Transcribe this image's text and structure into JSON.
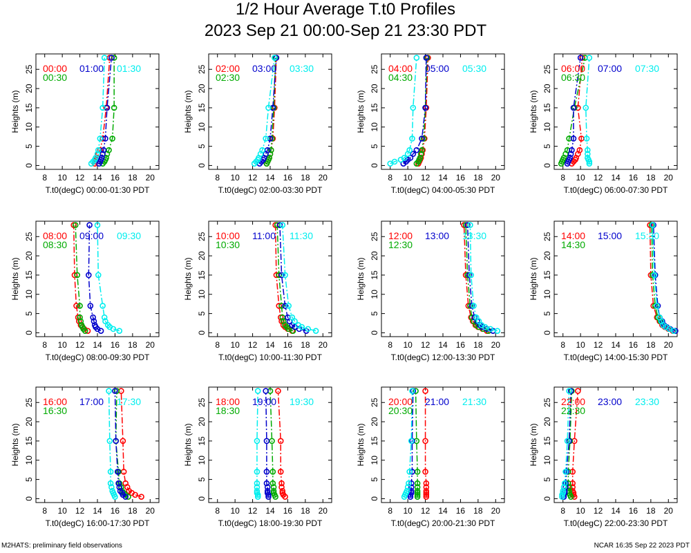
{
  "page": {
    "title": "1/2 Hour Average T.t0 Profiles",
    "subtitle": "2023 Sep 21 00:00-Sep 21 23:30 PDT",
    "footer_left": "M2HATS: preliminary field observations",
    "footer_right": "NCAR 16:35 Sep 22 2023 PDT"
  },
  "colors": {
    "series1": "#ff0000",
    "series2": "#00aa00",
    "series3": "#0000cc",
    "series4": "#00eeee",
    "axis": "#000000"
  },
  "chart_data": [
    {
      "type": "line",
      "xlabel": "T.t0(degC) 00:00-01:30 PDT",
      "ylabel": "Heights (m)",
      "xlim": [
        7,
        21
      ],
      "ylim": [
        -1,
        29
      ],
      "xticks": [
        8,
        10,
        12,
        14,
        16,
        18,
        20
      ],
      "yticks": [
        0,
        5,
        10,
        15,
        20,
        25
      ],
      "grid": false,
      "heights": [
        0.5,
        1,
        1.5,
        2,
        3,
        4,
        7,
        15,
        28
      ],
      "series": [
        {
          "name": "00:00",
          "values": [
            13.7,
            13.8,
            13.9,
            14.0,
            14.1,
            14.3,
            14.6,
            15.0,
            15.4
          ]
        },
        {
          "name": "00:30",
          "values": [
            14.6,
            14.8,
            14.9,
            15.0,
            15.1,
            15.3,
            15.7,
            15.9,
            15.9
          ]
        },
        {
          "name": "01:00",
          "values": [
            14.2,
            14.3,
            14.4,
            14.5,
            14.6,
            14.7,
            14.9,
            15.1,
            15.6
          ]
        },
        {
          "name": "01:30",
          "values": [
            13.3,
            13.5,
            13.7,
            13.8,
            14.0,
            14.1,
            14.3,
            14.6,
            14.8
          ]
        }
      ]
    },
    {
      "type": "line",
      "xlabel": "T.t0(degC) 02:00-03:30 PDT",
      "ylabel": "Heights (m)",
      "xlim": [
        7,
        21
      ],
      "ylim": [
        -1,
        29
      ],
      "xticks": [
        8,
        10,
        12,
        14,
        16,
        18,
        20
      ],
      "yticks": [
        0,
        5,
        10,
        15,
        20,
        25
      ],
      "grid": false,
      "heights": [
        0.5,
        1,
        1.5,
        2,
        3,
        4,
        7,
        15,
        28
      ],
      "series": [
        {
          "name": "02:00",
          "values": [
            13.6,
            13.7,
            13.8,
            13.9,
            14.0,
            14.1,
            14.3,
            14.5,
            14.7
          ]
        },
        {
          "name": "02:30",
          "values": [
            13.6,
            13.7,
            13.8,
            13.9,
            14.0,
            14.1,
            14.2,
            14.4,
            14.6
          ]
        },
        {
          "name": "03:00",
          "values": [
            12.8,
            13.0,
            13.2,
            13.3,
            13.5,
            13.7,
            14.0,
            14.3,
            14.7
          ]
        },
        {
          "name": "03:30",
          "values": [
            12.2,
            12.4,
            12.6,
            12.7,
            12.9,
            13.1,
            13.5,
            13.8,
            14.5
          ]
        }
      ]
    },
    {
      "type": "line",
      "xlabel": "T.t0(degC) 04:00-05:30 PDT",
      "ylabel": "Heights (m)",
      "xlim": [
        7,
        21
      ],
      "ylim": [
        -1,
        29
      ],
      "xticks": [
        8,
        10,
        12,
        14,
        16,
        18,
        20
      ],
      "yticks": [
        0,
        5,
        10,
        15,
        20,
        25
      ],
      "grid": false,
      "heights": [
        0.5,
        1,
        1.5,
        2,
        3,
        4,
        7,
        15,
        28
      ],
      "series": [
        {
          "name": "04:00",
          "values": [
            11.2,
            11.3,
            11.4,
            11.5,
            11.6,
            11.7,
            11.9,
            12.1,
            12.3
          ]
        },
        {
          "name": "04:30",
          "values": [
            11.0,
            11.2,
            11.3,
            11.4,
            11.5,
            11.6,
            11.8,
            12.0,
            12.2
          ]
        },
        {
          "name": "05:00",
          "values": [
            9.5,
            9.8,
            10.0,
            10.3,
            10.6,
            11.0,
            11.6,
            12.0,
            12.1
          ]
        },
        {
          "name": "05:30",
          "values": [
            8.0,
            8.5,
            9.2,
            9.6,
            10.0,
            10.2,
            10.5,
            10.6,
            11.0
          ]
        }
      ]
    },
    {
      "type": "line",
      "xlabel": "T.t0(degC) 06:00-07:30 PDT",
      "ylabel": "Heights (m)",
      "xlim": [
        7,
        21
      ],
      "ylim": [
        -1,
        29
      ],
      "xticks": [
        8,
        10,
        12,
        14,
        16,
        18,
        20
      ],
      "yticks": [
        0,
        5,
        10,
        15,
        20,
        25
      ],
      "grid": false,
      "heights": [
        0.5,
        1,
        1.5,
        2,
        3,
        4,
        7,
        15,
        28
      ],
      "series": [
        {
          "name": "06:00",
          "values": [
            9.0,
            9.2,
            9.4,
            9.5,
            9.7,
            9.9,
            10.1,
            9.7,
            10.2
          ]
        },
        {
          "name": "06:30",
          "values": [
            7.8,
            7.9,
            8.0,
            8.1,
            8.3,
            8.5,
            8.7,
            9.3,
            10.5
          ]
        },
        {
          "name": "07:00",
          "values": [
            8.5,
            8.6,
            8.7,
            8.8,
            8.9,
            9.0,
            9.2,
            9.2,
            10.0
          ]
        },
        {
          "name": "07:30",
          "values": [
            11.0,
            11.0,
            10.9,
            10.8,
            10.8,
            10.8,
            10.7,
            10.6,
            11.0
          ]
        }
      ]
    },
    {
      "type": "line",
      "xlabel": "T.t0(degC) 08:00-09:30 PDT",
      "ylabel": "Heights (m)",
      "xlim": [
        7,
        21
      ],
      "ylim": [
        -1,
        29
      ],
      "xticks": [
        8,
        10,
        12,
        14,
        16,
        18,
        20
      ],
      "yticks": [
        0,
        5,
        10,
        15,
        20,
        25
      ],
      "grid": false,
      "heights": [
        0.5,
        1,
        1.5,
        2,
        3,
        4,
        7,
        15,
        28
      ],
      "series": [
        {
          "name": "08:00",
          "values": [
            12.9,
            12.5,
            12.3,
            12.1,
            11.9,
            11.8,
            11.6,
            11.4,
            11.3
          ]
        },
        {
          "name": "08:30",
          "values": [
            12.6,
            12.4,
            12.3,
            12.2,
            12.1,
            12.0,
            12.0,
            11.7,
            11.5
          ]
        },
        {
          "name": "09:00",
          "values": [
            14.4,
            14.0,
            13.8,
            13.7,
            13.6,
            13.5,
            13.2,
            13.0,
            13.1
          ]
        },
        {
          "name": "09:30",
          "values": [
            16.5,
            15.8,
            15.4,
            15.2,
            14.9,
            14.8,
            14.6,
            14.1,
            14.0
          ]
        }
      ]
    },
    {
      "type": "line",
      "xlabel": "T.t0(degC) 10:00-11:30 PDT",
      "ylabel": "Heights (m)",
      "xlim": [
        7,
        21
      ],
      "ylim": [
        -1,
        29
      ],
      "xticks": [
        8,
        10,
        12,
        14,
        16,
        18,
        20
      ],
      "yticks": [
        0,
        5,
        10,
        15,
        20,
        25
      ],
      "grid": false,
      "heights": [
        0.5,
        1,
        1.5,
        2,
        3,
        4,
        7,
        15,
        28
      ],
      "series": [
        {
          "name": "10:00",
          "values": [
            16.5,
            16.0,
            15.7,
            15.5,
            15.3,
            15.2,
            15.0,
            14.7,
            14.6
          ]
        },
        {
          "name": "10:30",
          "values": [
            16.6,
            16.1,
            15.9,
            15.7,
            15.5,
            15.4,
            15.3,
            15.0,
            14.8
          ]
        },
        {
          "name": "11:00",
          "values": [
            18.1,
            17.3,
            16.8,
            16.5,
            16.2,
            16.0,
            15.7,
            15.3,
            15.1
          ]
        },
        {
          "name": "11:30",
          "values": [
            19.2,
            18.3,
            17.6,
            17.2,
            16.8,
            16.5,
            16.1,
            15.7,
            15.4
          ]
        }
      ]
    },
    {
      "type": "line",
      "xlabel": "T.t0(degC) 12:00-13:30 PDT",
      "ylabel": "Heights (m)",
      "xlim": [
        7,
        21
      ],
      "ylim": [
        -1,
        29
      ],
      "xticks": [
        8,
        10,
        12,
        14,
        16,
        18,
        20
      ],
      "yticks": [
        0,
        5,
        10,
        15,
        20,
        25
      ],
      "grid": false,
      "heights": [
        0.5,
        1,
        1.5,
        2,
        3,
        4,
        7,
        15,
        28
      ],
      "series": [
        {
          "name": "12:00",
          "values": [
            19.0,
            18.5,
            18.0,
            17.7,
            17.4,
            17.2,
            16.9,
            16.6,
            16.4
          ]
        },
        {
          "name": "12:30",
          "values": [
            19.2,
            18.6,
            18.1,
            17.8,
            17.5,
            17.3,
            17.1,
            16.8,
            16.6
          ]
        },
        {
          "name": "13:00",
          "values": [
            19.7,
            19.0,
            18.5,
            18.2,
            17.9,
            17.6,
            17.3,
            17.0,
            16.8
          ]
        },
        {
          "name": "13:30",
          "values": [
            20.2,
            19.4,
            18.8,
            18.4,
            18.1,
            17.8,
            17.5,
            17.2,
            17.1
          ]
        }
      ]
    },
    {
      "type": "line",
      "xlabel": "T.t0(degC) 14:00-15:30 PDT",
      "ylabel": "Heights (m)",
      "xlim": [
        7,
        21
      ],
      "ylim": [
        -1,
        29
      ],
      "xticks": [
        8,
        10,
        12,
        14,
        16,
        18,
        20
      ],
      "yticks": [
        0,
        5,
        10,
        15,
        20,
        25
      ],
      "grid": false,
      "heights": [
        0.5,
        1,
        1.5,
        2,
        3,
        4,
        7,
        15,
        28
      ],
      "series": [
        {
          "name": "14:00",
          "values": [
            20.5,
            20.0,
            19.6,
            19.3,
            19.0,
            18.7,
            18.3,
            18.0,
            17.9
          ]
        },
        {
          "name": "14:30",
          "values": [
            20.6,
            20.1,
            19.7,
            19.4,
            19.1,
            18.8,
            18.5,
            18.2,
            18.1
          ]
        },
        {
          "name": "15:00",
          "values": [
            20.8,
            20.2,
            19.8,
            19.5,
            19.3,
            19.0,
            18.8,
            18.5,
            18.3
          ]
        },
        {
          "name": "15:30",
          "values": [
            20.6,
            20.1,
            19.7,
            19.4,
            19.2,
            19.0,
            18.7,
            18.4,
            18.2
          ]
        }
      ]
    },
    {
      "type": "line",
      "xlabel": "T.t0(degC) 16:00-17:30 PDT",
      "ylabel": "Heights (m)",
      "xlim": [
        7,
        21
      ],
      "ylim": [
        -1,
        29
      ],
      "xticks": [
        8,
        10,
        12,
        14,
        16,
        18,
        20
      ],
      "yticks": [
        0,
        5,
        10,
        15,
        20,
        25
      ],
      "grid": false,
      "heights": [
        0.5,
        1,
        1.5,
        2,
        3,
        4,
        7,
        15,
        28
      ],
      "series": [
        {
          "name": "16:00",
          "values": [
            19.0,
            18.3,
            17.9,
            17.6,
            17.4,
            17.2,
            17.0,
            16.9,
            16.7
          ]
        },
        {
          "name": "16:30",
          "values": [
            17.5,
            17.2,
            17.0,
            16.8,
            16.7,
            16.5,
            16.4,
            16.1,
            16.2
          ]
        },
        {
          "name": "17:00",
          "values": [
            17.2,
            16.9,
            16.8,
            16.6,
            16.5,
            16.4,
            16.3,
            16.1,
            16.0
          ]
        },
        {
          "name": "17:30",
          "values": [
            16.0,
            15.9,
            15.8,
            15.7,
            15.6,
            15.5,
            15.5,
            15.4,
            15.3
          ]
        }
      ]
    },
    {
      "type": "line",
      "xlabel": "T.t0(degC) 18:00-19:30 PDT",
      "ylabel": "Heights (m)",
      "xlim": [
        7,
        21
      ],
      "ylim": [
        -1,
        29
      ],
      "xticks": [
        8,
        10,
        12,
        14,
        16,
        18,
        20
      ],
      "yticks": [
        0,
        5,
        10,
        15,
        20,
        25
      ],
      "grid": false,
      "heights": [
        0.5,
        1,
        1.5,
        2,
        3,
        4,
        7,
        15,
        28
      ],
      "series": [
        {
          "name": "18:00",
          "values": [
            15.7,
            15.5,
            15.4,
            15.4,
            15.3,
            15.3,
            15.2,
            15.2,
            14.9
          ]
        },
        {
          "name": "18:30",
          "values": [
            14.6,
            14.5,
            14.4,
            14.4,
            14.4,
            14.3,
            14.3,
            14.2,
            14.0
          ]
        },
        {
          "name": "19:00",
          "values": [
            13.8,
            13.8,
            13.7,
            13.7,
            13.7,
            13.6,
            13.6,
            13.6,
            13.5
          ]
        },
        {
          "name": "19:30",
          "values": [
            12.6,
            12.6,
            12.5,
            12.5,
            12.5,
            12.5,
            12.5,
            12.5,
            12.6
          ]
        }
      ]
    },
    {
      "type": "line",
      "xlabel": "T.t0(degC) 20:00-21:30 PDT",
      "ylabel": "Heights (m)",
      "xlim": [
        7,
        21
      ],
      "ylim": [
        -1,
        29
      ],
      "xticks": [
        8,
        10,
        12,
        14,
        16,
        18,
        20
      ],
      "yticks": [
        0,
        5,
        10,
        15,
        20,
        25
      ],
      "grid": false,
      "heights": [
        0.5,
        1,
        1.5,
        2,
        3,
        4,
        7,
        15,
        28
      ],
      "series": [
        {
          "name": "20:00",
          "values": [
            12.1,
            12.1,
            12.1,
            12.1,
            12.1,
            12.1,
            12.0,
            12.0,
            12.0
          ]
        },
        {
          "name": "20:30",
          "values": [
            11.1,
            11.1,
            11.1,
            11.1,
            11.1,
            11.1,
            11.1,
            11.0,
            10.9
          ]
        },
        {
          "name": "21:00",
          "values": [
            10.3,
            10.3,
            10.4,
            10.4,
            10.4,
            10.4,
            10.5,
            10.5,
            10.6
          ]
        },
        {
          "name": "21:30",
          "values": [
            9.6,
            9.7,
            9.8,
            9.9,
            10.0,
            10.1,
            10.2,
            10.4,
            10.5
          ]
        }
      ]
    },
    {
      "type": "line",
      "xlabel": "T.t0(degC) 22:00-23:30 PDT",
      "ylabel": "Heights (m)",
      "xlim": [
        7,
        21
      ],
      "ylim": [
        -1,
        29
      ],
      "xticks": [
        8,
        10,
        12,
        14,
        16,
        18,
        20
      ],
      "yticks": [
        0,
        5,
        10,
        15,
        20,
        25
      ],
      "grid": false,
      "heights": [
        0.5,
        1,
        1.5,
        2,
        3,
        4,
        7,
        15,
        28
      ],
      "series": [
        {
          "name": "22:00",
          "values": [
            9.3,
            9.2,
            9.2,
            9.1,
            9.1,
            9.1,
            9.1,
            9.3,
            9.7
          ]
        },
        {
          "name": "22:30",
          "values": [
            8.9,
            8.8,
            8.7,
            8.7,
            8.7,
            8.6,
            8.6,
            8.8,
            9.0
          ]
        },
        {
          "name": "23:00",
          "values": [
            8.1,
            8.1,
            8.2,
            8.2,
            8.3,
            8.3,
            8.4,
            8.7,
            8.9
          ]
        },
        {
          "name": "23:30",
          "values": [
            7.9,
            7.9,
            8.0,
            8.0,
            8.1,
            8.2,
            8.3,
            8.5,
            8.7
          ]
        }
      ]
    }
  ]
}
